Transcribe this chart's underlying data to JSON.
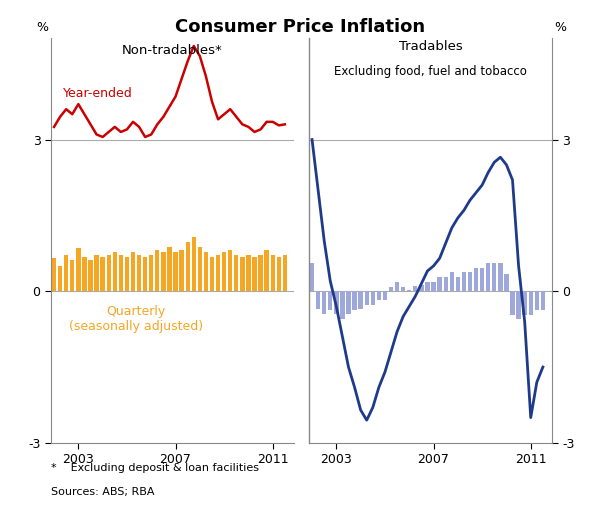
{
  "title": "Consumer Price Inflation",
  "footnote1": "*    Excluding deposit & loan facilities",
  "footnote2": "Sources: ABS; RBA",
  "left_panel_title": "Non-tradables*",
  "right_panel_title_line1": "Tradables",
  "right_panel_title_line2": "Excluding food, fuel and tobacco",
  "left_year_ended_color": "#cc0000",
  "left_quarterly_color": "#f5a623",
  "right_line_color": "#1f3a8a",
  "right_bar_color": "#9fa8da",
  "ylim": [
    -3,
    5
  ],
  "yticks": [
    -3,
    0,
    3
  ],
  "ytick_labels": [
    "-3",
    "0",
    "3"
  ],
  "xmin": 2001.875,
  "xmax": 2011.875,
  "xticks": [
    2003,
    2007,
    2011
  ],
  "bar_width": 0.18,
  "divider_y": 3.0,
  "zero_line_y": 0.0,
  "background_color": "#ffffff",
  "grid_color": "#aaaaaa",
  "left_ye_x": [
    2002.0,
    2002.25,
    2002.5,
    2002.75,
    2003.0,
    2003.25,
    2003.5,
    2003.75,
    2004.0,
    2004.25,
    2004.5,
    2004.75,
    2005.0,
    2005.25,
    2005.5,
    2005.75,
    2006.0,
    2006.25,
    2006.5,
    2006.75,
    2007.0,
    2007.25,
    2007.5,
    2007.75,
    2008.0,
    2008.25,
    2008.5,
    2008.75,
    2009.0,
    2009.25,
    2009.5,
    2009.75,
    2010.0,
    2010.25,
    2010.5,
    2010.75,
    2011.0,
    2011.25,
    2011.5
  ],
  "left_ye_y": [
    3.25,
    3.45,
    3.6,
    3.5,
    3.7,
    3.5,
    3.3,
    3.1,
    3.05,
    3.15,
    3.25,
    3.15,
    3.2,
    3.35,
    3.25,
    3.05,
    3.1,
    3.3,
    3.45,
    3.65,
    3.85,
    4.2,
    4.55,
    4.85,
    4.65,
    4.25,
    3.75,
    3.4,
    3.5,
    3.6,
    3.45,
    3.3,
    3.25,
    3.15,
    3.2,
    3.35,
    3.35,
    3.28,
    3.3
  ],
  "left_q_x": [
    2002.0,
    2002.25,
    2002.5,
    2002.75,
    2003.0,
    2003.25,
    2003.5,
    2003.75,
    2004.0,
    2004.25,
    2004.5,
    2004.75,
    2005.0,
    2005.25,
    2005.5,
    2005.75,
    2006.0,
    2006.25,
    2006.5,
    2006.75,
    2007.0,
    2007.25,
    2007.5,
    2007.75,
    2008.0,
    2008.25,
    2008.5,
    2008.75,
    2009.0,
    2009.25,
    2009.5,
    2009.75,
    2010.0,
    2010.25,
    2010.5,
    2010.75,
    2011.0,
    2011.25,
    2011.5
  ],
  "left_q_y": [
    0.65,
    0.5,
    0.72,
    0.62,
    0.85,
    0.68,
    0.62,
    0.72,
    0.68,
    0.72,
    0.78,
    0.72,
    0.68,
    0.78,
    0.72,
    0.68,
    0.72,
    0.82,
    0.78,
    0.88,
    0.78,
    0.82,
    0.98,
    1.08,
    0.88,
    0.78,
    0.68,
    0.72,
    0.78,
    0.82,
    0.72,
    0.68,
    0.72,
    0.68,
    0.72,
    0.82,
    0.72,
    0.68,
    0.72
  ],
  "right_line_x": [
    2002.0,
    2002.25,
    2002.5,
    2002.75,
    2003.0,
    2003.25,
    2003.5,
    2003.75,
    2004.0,
    2004.25,
    2004.5,
    2004.75,
    2005.0,
    2005.25,
    2005.5,
    2005.75,
    2006.0,
    2006.25,
    2006.5,
    2006.75,
    2007.0,
    2007.25,
    2007.5,
    2007.75,
    2008.0,
    2008.25,
    2008.5,
    2008.75,
    2009.0,
    2009.25,
    2009.5,
    2009.75,
    2010.0,
    2010.25,
    2010.5,
    2010.75,
    2011.0,
    2011.25,
    2011.5
  ],
  "right_line_y": [
    3.0,
    2.0,
    1.0,
    0.2,
    -0.3,
    -0.9,
    -1.5,
    -1.9,
    -2.35,
    -2.55,
    -2.3,
    -1.9,
    -1.6,
    -1.2,
    -0.8,
    -0.5,
    -0.3,
    -0.1,
    0.15,
    0.4,
    0.5,
    0.65,
    0.95,
    1.25,
    1.45,
    1.6,
    1.8,
    1.95,
    2.1,
    2.35,
    2.55,
    2.65,
    2.5,
    2.2,
    0.5,
    -0.6,
    -2.5,
    -1.8,
    -1.5
  ],
  "right_bar_x": [
    2002.0,
    2002.25,
    2002.5,
    2002.75,
    2003.0,
    2003.25,
    2003.5,
    2003.75,
    2004.0,
    2004.25,
    2004.5,
    2004.75,
    2005.0,
    2005.25,
    2005.5,
    2005.75,
    2006.0,
    2006.25,
    2006.5,
    2006.75,
    2007.0,
    2007.25,
    2007.5,
    2007.75,
    2008.0,
    2008.25,
    2008.5,
    2008.75,
    2009.0,
    2009.25,
    2009.5,
    2009.75,
    2010.0,
    2010.25,
    2010.5,
    2010.75,
    2011.0,
    2011.25,
    2011.5
  ],
  "right_bar_y": [
    0.55,
    -0.35,
    -0.45,
    -0.38,
    -0.45,
    -0.55,
    -0.45,
    -0.38,
    -0.35,
    -0.28,
    -0.28,
    -0.18,
    -0.18,
    0.08,
    0.18,
    0.08,
    0.02,
    0.1,
    0.12,
    0.18,
    0.18,
    0.28,
    0.28,
    0.38,
    0.28,
    0.38,
    0.38,
    0.45,
    0.45,
    0.55,
    0.55,
    0.55,
    0.35,
    -0.48,
    -0.55,
    -0.48,
    -0.48,
    -0.38,
    -0.38
  ]
}
